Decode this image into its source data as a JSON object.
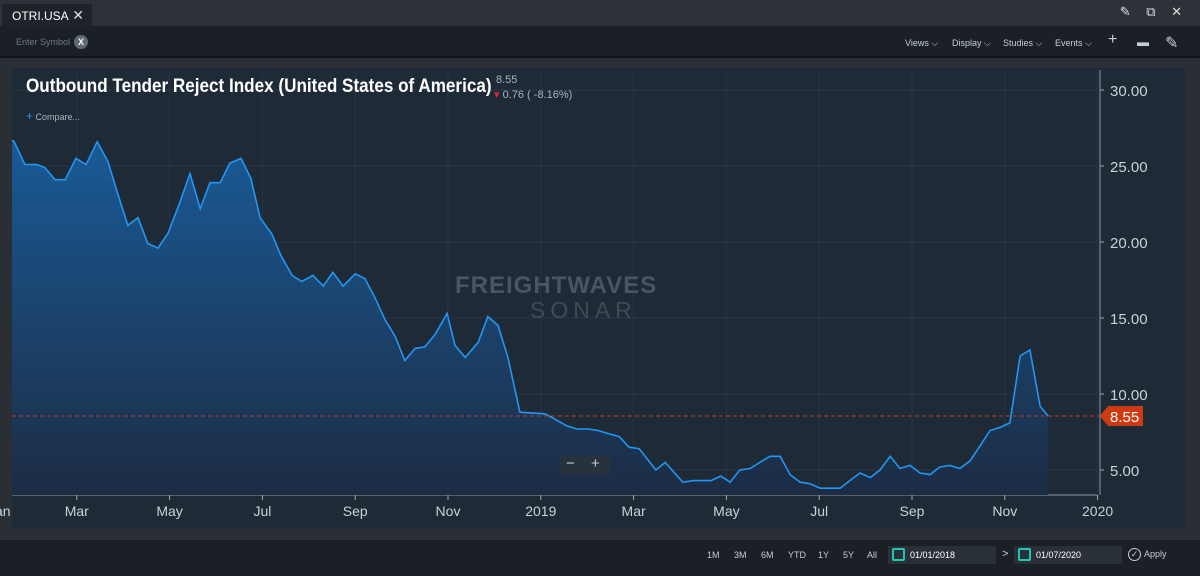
{
  "tab": {
    "label": "OTRI.USA",
    "close": "✕"
  },
  "window_icons": "✎ ⧉ ✕",
  "toolbar": {
    "symbol_placeholder": "Enter Symbol",
    "clear": "X",
    "menus": [
      "Views ⌵",
      "Display ⌵",
      "Studies ⌵",
      "Events ⌵"
    ],
    "icons": [
      "+",
      "▬",
      "✎"
    ]
  },
  "chart_header": {
    "title": "Outbound Tender Reject Index (United States of America)",
    "last": "8.55",
    "change_arrow": "▾",
    "change": "0.76 ( -8.16%)",
    "compare": "Compare...",
    "compare_plus": "+"
  },
  "watermark": {
    "line1": "FREIGHTWAVES",
    "line2": "SONAR"
  },
  "zoom_controls": {
    "minus": "−",
    "plus": "+"
  },
  "footer": {
    "ranges": [
      "1M",
      "3M",
      "6M",
      "YTD",
      "1Y",
      "5Y",
      "All"
    ],
    "start_date": "01/01/2018",
    "end_date": "01/07/2020",
    "separator": ">",
    "apply": "Apply",
    "apply_icon": "✓"
  },
  "colors": {
    "line": "#2196f3",
    "marker": "#d03a10",
    "last_line": "#c0392b"
  },
  "chart_data": {
    "type": "area",
    "title": "Outbound Tender Reject Index (United States of America)",
    "xlabel": "",
    "ylabel": "",
    "x_unit": "months since Jan 2018",
    "xlim": [
      0.6,
      24
    ],
    "ylim": [
      3.36,
      31.3
    ],
    "y_ticks": [
      5,
      10,
      15,
      20,
      25,
      30
    ],
    "y_tick_labels": [
      "5.00",
      "10.00",
      "15.00",
      "20.00",
      "25.00",
      "30.00"
    ],
    "x_ticks": [
      0,
      2,
      4,
      6,
      8,
      10,
      12,
      14,
      16,
      18,
      20,
      22,
      24
    ],
    "x_tick_labels": [
      "Jan",
      "Mar",
      "May",
      "Jul",
      "Sep",
      "Nov",
      "2019",
      "Mar",
      "May",
      "Jul",
      "Sep",
      "Nov",
      "2020"
    ],
    "last_value": 8.55,
    "last_value_label": "8.55",
    "x": [
      0.6,
      0.65,
      0.88,
      1.14,
      1.31,
      1.53,
      1.75,
      1.98,
      2.2,
      2.44,
      2.67,
      2.89,
      3.1,
      3.32,
      3.53,
      3.75,
      3.97,
      4.22,
      4.44,
      4.66,
      4.87,
      5.09,
      5.3,
      5.54,
      5.75,
      5.95,
      6.21,
      6.4,
      6.64,
      6.85,
      7.09,
      7.31,
      7.52,
      7.74,
      8.0,
      8.21,
      8.43,
      8.64,
      8.86,
      9.07,
      9.29,
      9.5,
      9.72,
      9.98,
      10.15,
      10.37,
      10.65,
      10.86,
      11.08,
      11.29,
      11.55,
      12.09,
      12.33,
      12.56,
      12.78,
      13.02,
      13.23,
      13.45,
      13.69,
      13.9,
      14.12,
      14.48,
      14.68,
      15.06,
      15.3,
      15.67,
      15.88,
      16.08,
      16.29,
      16.51,
      16.72,
      16.94,
      17.16,
      17.37,
      17.59,
      17.8,
      18.02,
      18.28,
      18.45,
      18.66,
      18.88,
      19.1,
      19.31,
      19.53,
      19.74,
      19.96,
      20.17,
      20.39,
      20.6,
      20.82,
      21.03,
      21.25,
      21.47,
      21.68,
      21.9,
      22.11,
      22.33,
      22.54,
      22.76,
      22.93
    ],
    "y": [
      26.7,
      26.6,
      25.1,
      25.1,
      24.9,
      24.1,
      24.1,
      25.5,
      25.1,
      26.6,
      25.3,
      23.1,
      21.1,
      21.6,
      19.9,
      19.6,
      20.6,
      22.6,
      24.5,
      22.2,
      23.9,
      23.9,
      25.2,
      25.5,
      24.2,
      21.6,
      20.5,
      19.1,
      17.8,
      17.4,
      17.8,
      17.1,
      18.0,
      17.1,
      17.9,
      17.6,
      16.3,
      14.9,
      13.8,
      12.2,
      13.0,
      13.1,
      13.9,
      15.3,
      13.2,
      12.4,
      13.4,
      15.1,
      14.5,
      12.4,
      8.8,
      8.7,
      8.3,
      7.9,
      7.7,
      7.7,
      7.6,
      7.4,
      7.2,
      6.5,
      6.4,
      5.0,
      5.5,
      4.2,
      4.3,
      4.3,
      4.6,
      4.2,
      5.0,
      5.1,
      5.5,
      5.9,
      5.9,
      4.7,
      4.2,
      4.1,
      3.8,
      3.8,
      3.8,
      4.3,
      4.8,
      4.5,
      5.0,
      5.9,
      5.1,
      5.3,
      4.8,
      4.7,
      5.2,
      5.3,
      5.1,
      5.6,
      6.6,
      7.6,
      7.8,
      8.1,
      12.5,
      12.9,
      9.2,
      8.55
    ]
  }
}
